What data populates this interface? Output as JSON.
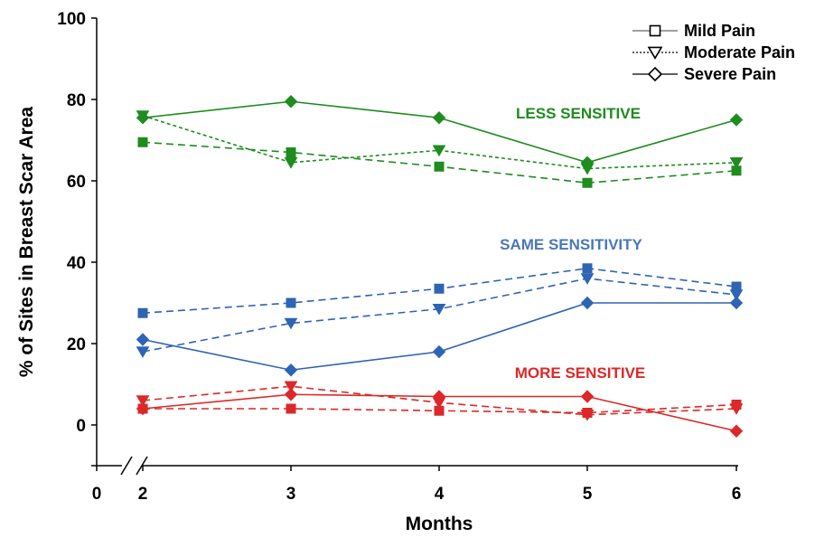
{
  "chart_data": {
    "type": "line",
    "title": "",
    "xlabel": "Months",
    "ylabel": "% of Sites in Breast Scar Area",
    "x": [
      2,
      3,
      4,
      5,
      6
    ],
    "xticks": [
      "0",
      "2",
      "3",
      "4",
      "5",
      "6"
    ],
    "yticks": [
      "0",
      "20",
      "40",
      "60",
      "80",
      "100"
    ],
    "ylim": [
      -10,
      100
    ],
    "axis_break": "x between 0 and 2",
    "grid": false,
    "legend_position": "top-right",
    "legend": [
      {
        "label": "Mild Pain",
        "marker": "square",
        "line": "thin-solid"
      },
      {
        "label": "Moderate Pain",
        "marker": "triangle-down",
        "line": "dotted"
      },
      {
        "label": "Severe Pain",
        "marker": "diamond",
        "line": "solid"
      }
    ],
    "annotations": [
      {
        "text": "LESS SENSITIVE",
        "color": "#1e8c1e"
      },
      {
        "text": "SAME SENSITIVITY",
        "color": "#4a78b8"
      },
      {
        "text": "MORE SENSITIVE",
        "color": "#dc2828"
      }
    ],
    "groups": [
      {
        "name": "LESS SENSITIVE",
        "color": "#1e8c1e",
        "series": [
          {
            "name": "Mild Pain",
            "marker": "square",
            "dash": "long",
            "values": [
              69.5,
              67,
              63.5,
              59.5,
              62.5
            ]
          },
          {
            "name": "Moderate Pain",
            "marker": "triangle-down",
            "dash": "short",
            "values": [
              76,
              64.5,
              67.5,
              63,
              64.5
            ]
          },
          {
            "name": "Severe Pain",
            "marker": "diamond",
            "dash": "solid",
            "values": [
              75.5,
              79.5,
              75.5,
              64.5,
              75
            ]
          }
        ]
      },
      {
        "name": "SAME SENSITIVITY",
        "color": "#2e64b4",
        "series": [
          {
            "name": "Mild Pain",
            "marker": "square",
            "dash": "long",
            "values": [
              27.5,
              30,
              33.5,
              38.5,
              34
            ]
          },
          {
            "name": "Moderate Pain",
            "marker": "triangle-down",
            "dash": "long",
            "values": [
              18,
              25,
              28.5,
              36,
              32
            ]
          },
          {
            "name": "Severe Pain",
            "marker": "diamond",
            "dash": "solid",
            "values": [
              21,
              13.5,
              18,
              30,
              30
            ]
          }
        ]
      },
      {
        "name": "MORE SENSITIVE",
        "color": "#dc2828",
        "series": [
          {
            "name": "Mild Pain",
            "marker": "square",
            "dash": "long",
            "values": [
              4,
              4,
              3.5,
              3,
              5
            ]
          },
          {
            "name": "Moderate Pain",
            "marker": "triangle-down",
            "dash": "long",
            "values": [
              6,
              9.5,
              5.5,
              2.5,
              4
            ]
          },
          {
            "name": "Severe Pain",
            "marker": "diamond",
            "dash": "solid",
            "values": [
              4,
              7.5,
              7,
              7,
              -1.5
            ]
          }
        ]
      }
    ]
  }
}
